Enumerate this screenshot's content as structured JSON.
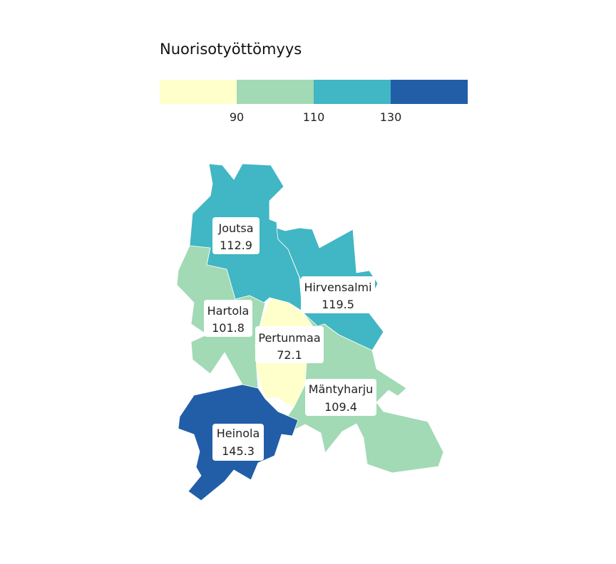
{
  "legend": {
    "title": "Nuorisotyöttömyys",
    "breaks": [
      "90",
      "110",
      "130"
    ],
    "colors": [
      "#ffffcc",
      "#a1dab4",
      "#41b6c4",
      "#225ea8"
    ]
  },
  "regions": [
    {
      "name": "Joutsa",
      "value": "112.9",
      "class": 2
    },
    {
      "name": "Hirvensalmi",
      "value": "119.5",
      "class": 2
    },
    {
      "name": "Hartola",
      "value": "101.8",
      "class": 1
    },
    {
      "name": "Pertunmaa",
      "value": "72.1",
      "class": 0
    },
    {
      "name": "Mäntyharju",
      "value": "109.4",
      "class": 1
    },
    {
      "name": "Heinola",
      "value": "145.3",
      "class": 3
    }
  ]
}
